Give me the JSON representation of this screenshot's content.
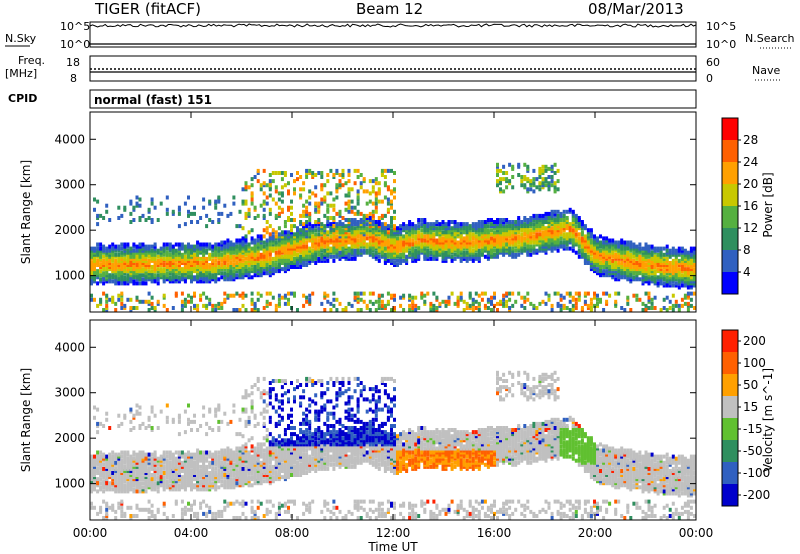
{
  "header": {
    "radar": "TIGER (fitACF)",
    "beam": "Beam 12",
    "date": "08/Mar/2013"
  },
  "panels": {
    "nsky_label": "N.Sky",
    "nsearch_label": "N.Search",
    "nsky_ticks": [
      "10^5",
      "10^0"
    ],
    "freq_label_line1": "Freq.",
    "freq_label_line2": "[MHz]",
    "freq_ticks": [
      "18",
      "8"
    ],
    "nave_label": "Nave",
    "nave_ticks": [
      "60",
      "0"
    ],
    "cpid_label": "CPID",
    "cpid_value": "normal (fast) 151"
  },
  "colors": {
    "power_scale": [
      "#0000ff",
      "#3060c0",
      "#2f8f5f",
      "#55b040",
      "#c8c800",
      "#ffa000",
      "#ff6000",
      "#ff0000"
    ],
    "velocity_scale": [
      "#0000cc",
      "#3060c0",
      "#2f8f5f",
      "#60c030",
      "#c0c0c0",
      "#ffa000",
      "#ff6000",
      "#ff2000"
    ],
    "ground_scatter": "#c0c0c0"
  },
  "chart_data": [
    {
      "type": "heatmap",
      "name": "power",
      "ylabel": "Slant Range [km]",
      "xlabel": "Time UT",
      "x_ticks": [
        "00:00",
        "04:00",
        "08:00",
        "12:00",
        "16:00",
        "20:00",
        "00:00"
      ],
      "y_ticks": [
        "1000",
        "2000",
        "3000",
        "4000"
      ],
      "ylim": [
        200,
        4600
      ],
      "colorbar_label": "Power [dB]",
      "colorbar_ticks": [
        "4",
        "8",
        "12",
        "16",
        "20",
        "24",
        "28"
      ],
      "bands": [
        {
          "t": [
            0,
            5,
            7,
            9,
            11,
            12,
            13,
            14,
            15,
            17,
            19,
            20,
            22,
            24
          ],
          "r": [
            1200,
            1250,
            1400,
            1700,
            1800,
            1600,
            1750,
            1700,
            1700,
            1800,
            2000,
            1400,
            1200,
            1100
          ],
          "width_km": 450,
          "peak_db": 24
        }
      ]
    },
    {
      "type": "heatmap",
      "name": "velocity",
      "ylabel": "Slant Range [km]",
      "xlabel": "Time UT",
      "x_ticks": [
        "00:00",
        "04:00",
        "08:00",
        "12:00",
        "16:00",
        "20:00",
        "00:00"
      ],
      "y_ticks": [
        "1000",
        "2000",
        "3000",
        "4000"
      ],
      "ylim": [
        200,
        4600
      ],
      "colorbar_label": "Velocity [m s^-1]",
      "colorbar_ticks": [
        "200",
        "100",
        "50",
        "15",
        "-15",
        "-50",
        "-100",
        "-200"
      ]
    }
  ],
  "axis": {
    "xlabel": "Time UT"
  }
}
